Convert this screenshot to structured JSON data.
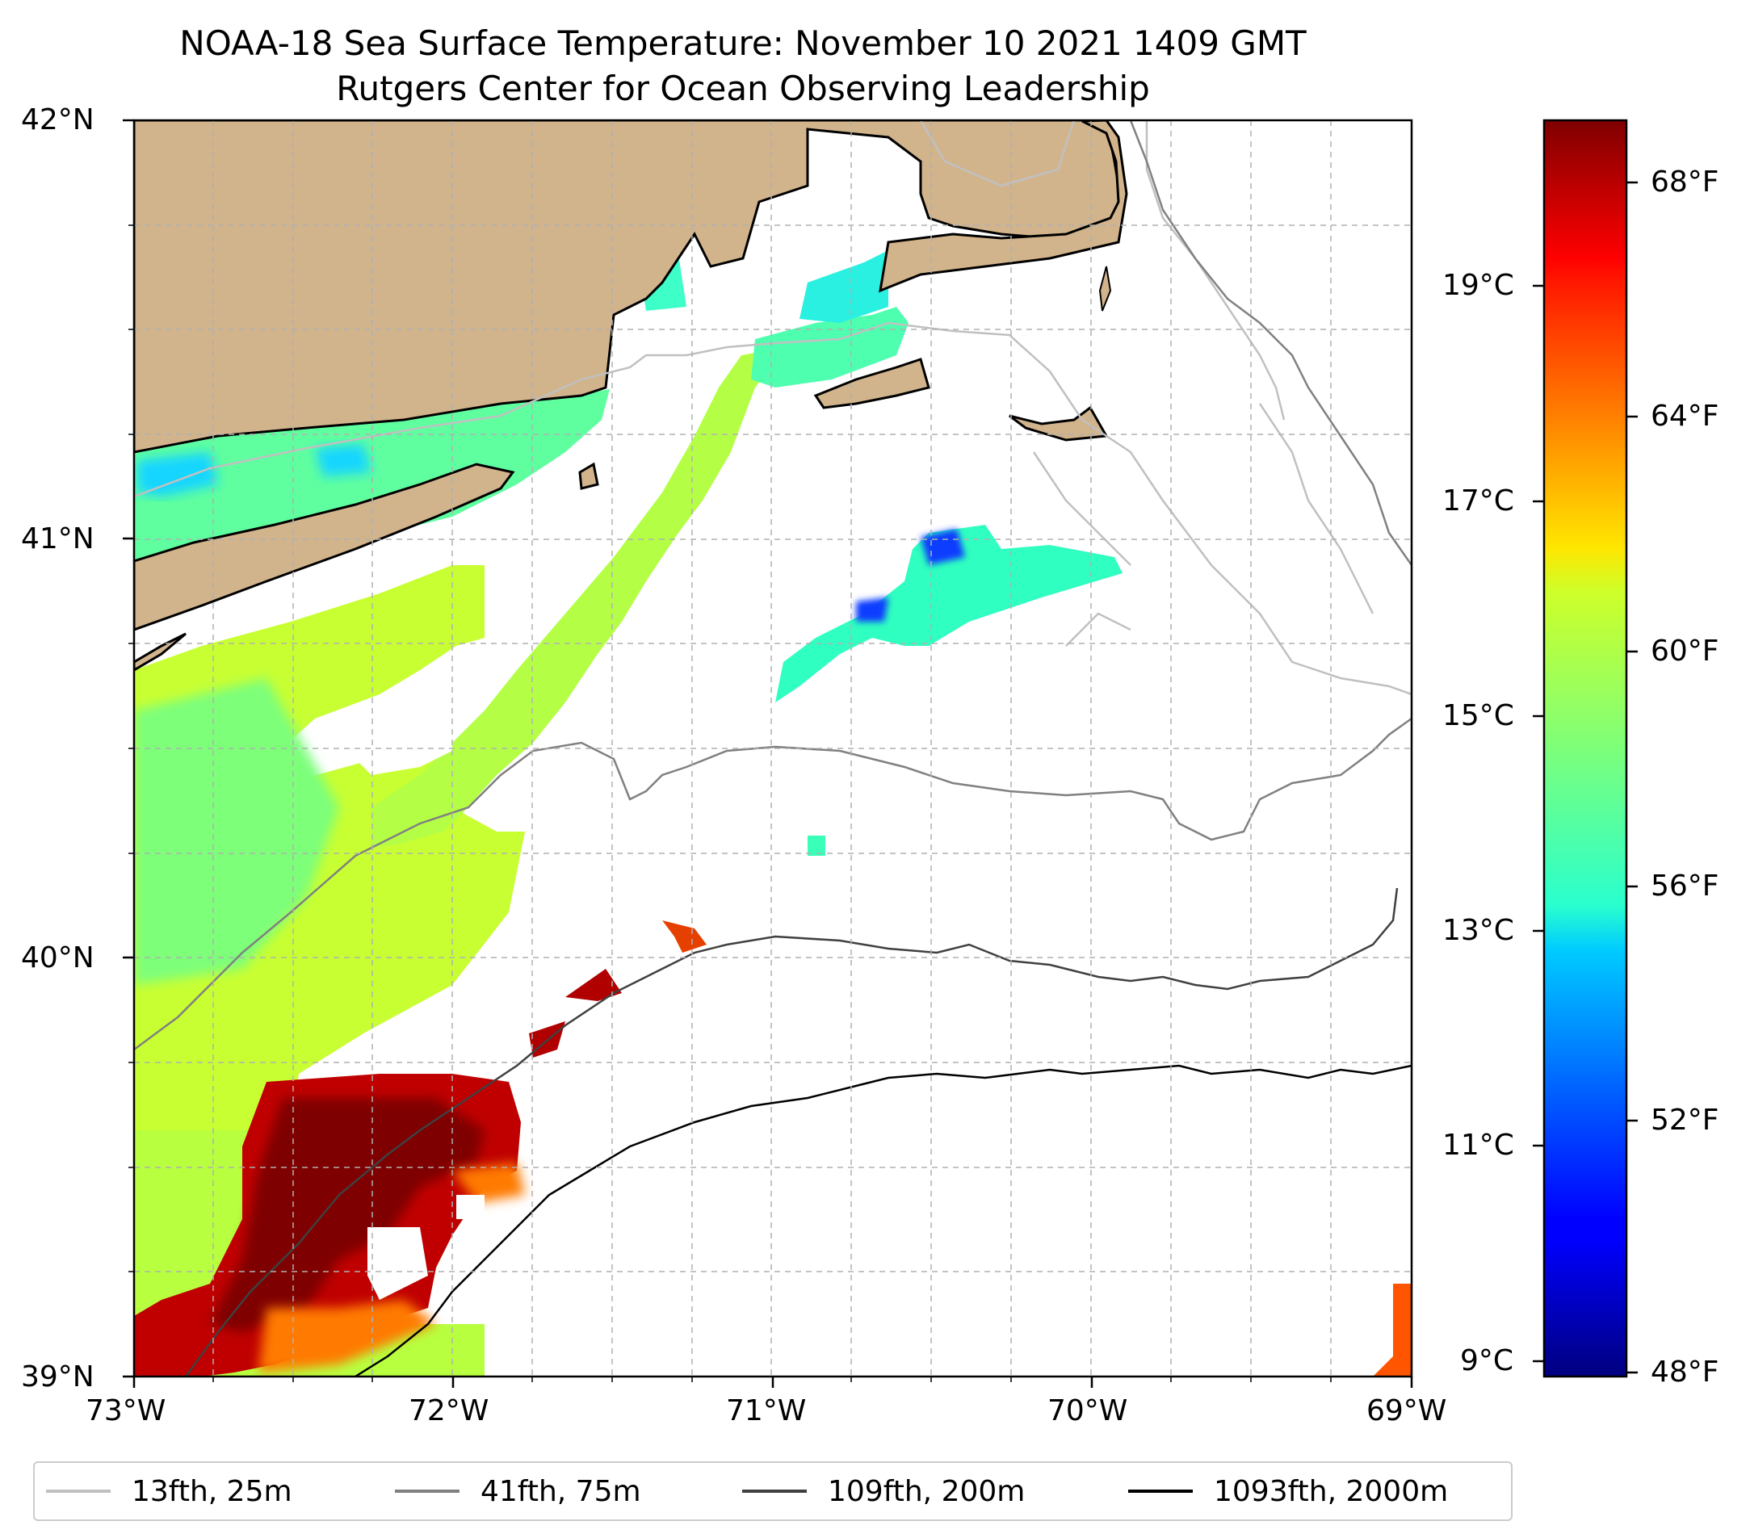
{
  "figure": {
    "title_line1": "NOAA-18 Sea Surface Temperature: November 10 2021 1409 GMT",
    "title_line2": "Rutgers Center for Ocean Observing Leadership"
  },
  "map": {
    "lon_range": [
      -73,
      -69
    ],
    "lat_range": [
      39,
      42
    ],
    "lon_ticks": [
      "73°W",
      "72°W",
      "71°W",
      "70°W",
      "69°W"
    ],
    "lat_ticks": [
      "42°N",
      "41°N",
      "40°N",
      "39°N"
    ],
    "land_color": "#d2b48c",
    "gridlines": true
  },
  "colorbar": {
    "colormap": "jet",
    "range_F": [
      48,
      69.4
    ],
    "fahrenheit_ticks": [
      "68°F",
      "64°F",
      "60°F",
      "56°F",
      "52°F",
      "48°F"
    ],
    "celsius_ticks": [
      "19°C",
      "17°C",
      "15°C",
      "13°C",
      "11°C",
      "9°C"
    ]
  },
  "legend": {
    "items": [
      {
        "label": "13fth, 25m",
        "color": "#c0c0c0"
      },
      {
        "label": "41fth, 75m",
        "color": "#808080"
      },
      {
        "label": "109fth, 200m",
        "color": "#404040"
      },
      {
        "label": "1093fth, 2000m",
        "color": "#000000"
      }
    ]
  }
}
